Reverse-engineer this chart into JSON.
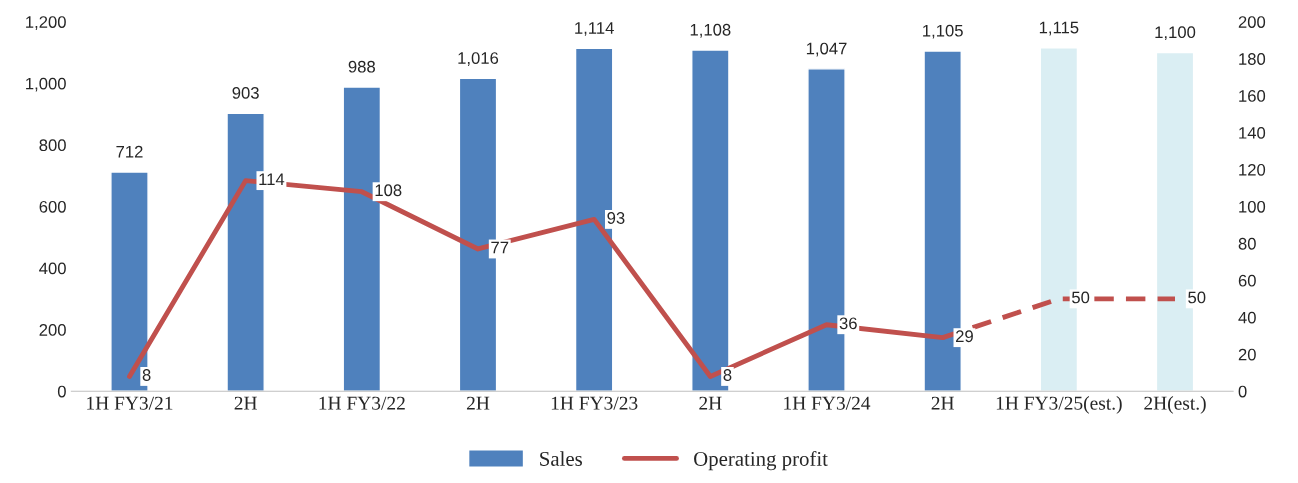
{
  "chart_data": {
    "type": "bar",
    "categories": [
      "1H FY3/21",
      "2H",
      "1H FY3/22",
      "2H",
      "1H FY3/23",
      "2H",
      "1H FY3/24",
      "2H",
      "1H FY3/25(est.)",
      "2H(est.)"
    ],
    "series": [
      {
        "name": "Sales",
        "color": "#4f81bd",
        "colors": [
          "#4f81bd",
          "#4f81bd",
          "#4f81bd",
          "#4f81bd",
          "#4f81bd",
          "#4f81bd",
          "#4f81bd",
          "#4f81bd",
          "#daeef3",
          "#daeef3"
        ],
        "values": [
          712,
          903,
          988,
          1016,
          1114,
          1108,
          1047,
          1105,
          1115,
          1100
        ],
        "value_labels": [
          "712",
          "903",
          "988",
          "1,016",
          "1,114",
          "1,108",
          "1,047",
          "1,105",
          "1,115",
          "1,100"
        ]
      },
      {
        "name": "Operating profit",
        "type": "line",
        "axis": "y2",
        "color": "#c0504d",
        "line_style": "solid",
        "values": [
          8,
          114,
          108,
          77,
          93,
          8,
          36,
          29,
          null,
          null
        ],
        "value_labels": [
          "8",
          "114",
          "108",
          "77",
          "93",
          "8",
          "36",
          "29",
          null,
          null
        ]
      },
      {
        "type": "line",
        "axis": "y2",
        "color": "#c0504d",
        "line_style": "dashed",
        "values": [
          null,
          null,
          null,
          null,
          null,
          null,
          null,
          29,
          50,
          50
        ],
        "value_labels": [
          null,
          null,
          null,
          null,
          null,
          null,
          null,
          null,
          "50",
          "50"
        ]
      }
    ],
    "ylim": [
      0,
      1200
    ],
    "yticks": [
      0,
      200,
      400,
      600,
      800,
      {
        "value": 1000,
        "label": "1,000"
      },
      {
        "value": 1200,
        "label": "1,200"
      }
    ],
    "y2lim": [
      0,
      200
    ],
    "y2ticks": [
      0,
      20,
      40,
      60,
      80,
      100,
      120,
      140,
      160,
      180,
      200
    ],
    "grid": false,
    "legend": "bottom"
  }
}
